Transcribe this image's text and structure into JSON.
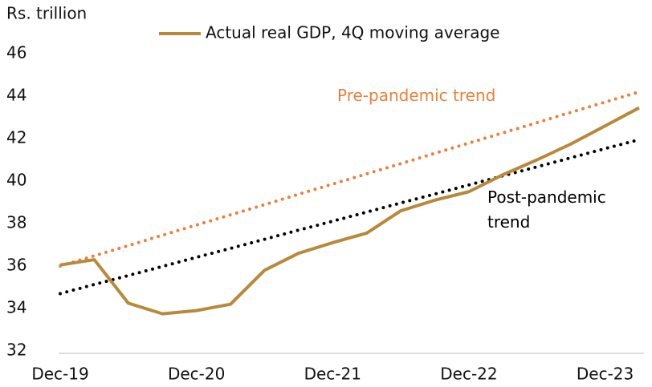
{
  "chart_data": {
    "type": "line",
    "ylabel": "Rs. trillion",
    "categories": [
      "Dec-19",
      null,
      null,
      null,
      "Dec-20",
      null,
      null,
      null,
      "Dec-21",
      null,
      null,
      null,
      "Dec-22",
      null,
      null,
      null,
      "Dec-23",
      null
    ],
    "series": [
      {
        "name": "Actual real GDP, 4Q moving average",
        "color": "#b8893a",
        "style": "solid",
        "in_legend": true,
        "values": [
          36.05,
          36.3,
          34.25,
          33.75,
          33.9,
          34.2,
          35.8,
          36.6,
          37.1,
          37.55,
          38.6,
          39.1,
          39.5,
          40.3,
          41.0,
          41.75,
          42.6,
          43.45
        ]
      },
      {
        "name": "Pre-pandemic trend",
        "color": "#e8803a",
        "style": "dotted",
        "in_legend": false,
        "values": [
          36.0,
          36.48,
          36.96,
          37.45,
          37.93,
          38.41,
          38.89,
          39.38,
          39.86,
          40.34,
          40.82,
          41.31,
          41.79,
          42.27,
          42.75,
          43.24,
          43.72,
          44.2
        ]
      },
      {
        "name": "Post-pandemic trend",
        "color": "#000000",
        "style": "dotted",
        "in_legend": false,
        "values": [
          34.7,
          35.13,
          35.55,
          35.98,
          36.41,
          36.83,
          37.26,
          37.69,
          38.11,
          38.54,
          38.97,
          39.39,
          39.82,
          40.25,
          40.67,
          41.1,
          41.53,
          41.95
        ]
      }
    ],
    "ylim": [
      32,
      46
    ],
    "yticks": [
      32,
      34,
      36,
      38,
      40,
      42,
      44,
      46
    ],
    "grid": false
  }
}
